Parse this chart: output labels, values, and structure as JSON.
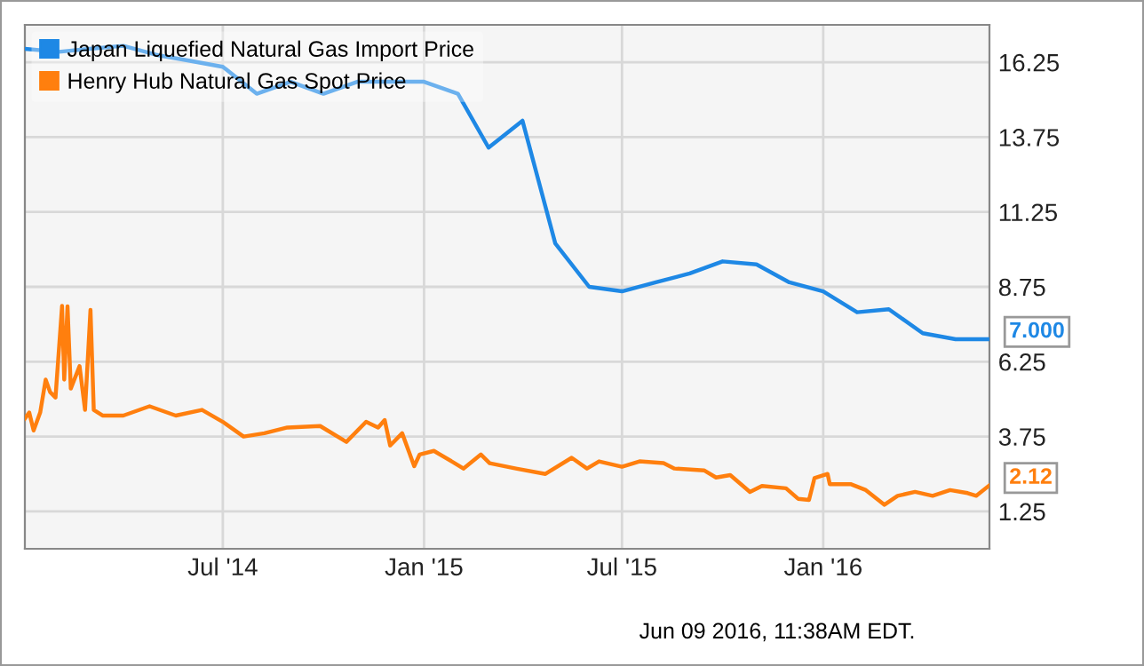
{
  "chart_data": {
    "type": "line",
    "legend": "top left",
    "grid": true,
    "marker": "none",
    "line_style": "solid",
    "xlim": [
      "2014-01-01",
      "2016-06-01"
    ],
    "xticks": [
      {
        "value": "2014-07-01",
        "label": "Jul '14"
      },
      {
        "value": "2015-01-01",
        "label": "Jan '15"
      },
      {
        "value": "2015-07-01",
        "label": "Jul '15"
      },
      {
        "value": "2016-01-01",
        "label": "Jan '16"
      }
    ],
    "ylim": [
      0,
      17.5
    ],
    "yticks": [
      1.25,
      3.75,
      6.25,
      8.75,
      11.25,
      13.75,
      16.25
    ],
    "annotations": [
      "Jun 09 2016, 11:38AM EDT."
    ],
    "series": [
      {
        "name": "Japan Liquefied Natural Gas Import Price",
        "color": "#1e88e5",
        "x": [
          "2014-01-01",
          "2014-02-01",
          "2014-03-01",
          "2014-04-01",
          "2014-05-01",
          "2014-06-01",
          "2014-07-01",
          "2014-08-01",
          "2014-09-01",
          "2014-10-01",
          "2014-11-01",
          "2014-12-01",
          "2015-01-01",
          "2015-02-01",
          "2015-03-01",
          "2015-04-01",
          "2015-05-01",
          "2015-06-01",
          "2015-07-01",
          "2015-08-01",
          "2015-09-01",
          "2015-10-01",
          "2015-11-01",
          "2015-12-01",
          "2016-01-01",
          "2016-02-01",
          "2016-03-01",
          "2016-04-01",
          "2016-05-01",
          "2016-06-01"
        ],
        "values": [
          16.7,
          16.6,
          16.7,
          16.8,
          16.5,
          16.3,
          16.1,
          15.2,
          15.6,
          15.2,
          15.6,
          15.6,
          15.6,
          15.2,
          13.4,
          14.3,
          10.2,
          8.75,
          8.6,
          8.9,
          9.2,
          9.6,
          9.5,
          8.9,
          8.6,
          7.9,
          8.0,
          7.2,
          7.0,
          7.0
        ],
        "value_labels": [
          null,
          null,
          null,
          null,
          null,
          null,
          null,
          null,
          null,
          null,
          null,
          null,
          null,
          null,
          null,
          null,
          null,
          null,
          null,
          null,
          null,
          null,
          null,
          null,
          null,
          null,
          null,
          null,
          null,
          "7.000"
        ]
      },
      {
        "name": "Henry Hub Natural Gas Spot Price",
        "color": "#ff7f0e",
        "x": [
          "2014-01-01",
          "2014-01-05",
          "2014-01-09",
          "2014-01-15",
          "2014-01-20",
          "2014-01-24",
          "2014-01-29",
          "2014-02-04",
          "2014-02-06",
          "2014-02-09",
          "2014-02-12",
          "2014-02-20",
          "2014-02-25",
          "2014-03-02",
          "2014-03-05",
          "2014-03-13",
          "2014-04-01",
          "2014-04-25",
          "2014-05-19",
          "2014-06-12",
          "2014-07-01",
          "2014-07-20",
          "2014-08-08",
          "2014-08-29",
          "2014-09-28",
          "2014-10-22",
          "2014-11-09",
          "2014-11-20",
          "2014-11-26",
          "2014-12-01",
          "2014-12-12",
          "2014-12-23",
          "2014-12-28",
          "2015-01-10",
          "2015-01-29",
          "2015-02-06",
          "2015-02-22",
          "2015-03-02",
          "2015-03-26",
          "2015-04-22",
          "2015-05-16",
          "2015-05-30",
          "2015-06-10",
          "2015-07-01",
          "2015-07-17",
          "2015-08-08",
          "2015-08-18",
          "2015-09-14",
          "2015-09-25",
          "2015-10-08",
          "2015-10-26",
          "2015-11-06",
          "2015-11-28",
          "2015-12-09",
          "2015-12-19",
          "2015-12-24",
          "2016-01-05",
          "2016-01-07",
          "2016-01-26",
          "2016-02-09",
          "2016-02-26",
          "2016-03-09",
          "2016-03-25",
          "2016-04-10",
          "2016-04-26",
          "2016-05-12",
          "2016-05-20",
          "2016-06-01"
        ],
        "values": [
          4.35,
          4.55,
          3.95,
          4.55,
          5.65,
          5.24,
          5.05,
          8.11,
          5.65,
          8.1,
          5.35,
          6.1,
          4.64,
          7.98,
          4.64,
          4.45,
          4.45,
          4.76,
          4.45,
          4.64,
          4.24,
          3.75,
          3.86,
          4.05,
          4.1,
          3.57,
          4.24,
          4.05,
          4.3,
          3.45,
          3.86,
          2.76,
          3.15,
          3.27,
          2.86,
          2.68,
          3.15,
          2.86,
          2.68,
          2.5,
          3.04,
          2.68,
          2.92,
          2.74,
          2.92,
          2.86,
          2.68,
          2.62,
          2.38,
          2.46,
          1.9,
          2.1,
          2.02,
          1.67,
          1.63,
          2.36,
          2.5,
          2.16,
          2.16,
          1.96,
          1.47,
          1.77,
          1.9,
          1.77,
          1.96,
          1.86,
          1.77,
          2.12
        ],
        "value_labels": [
          null,
          null,
          null,
          null,
          null,
          null,
          null,
          null,
          null,
          null,
          null,
          null,
          null,
          null,
          null,
          null,
          null,
          null,
          null,
          null,
          null,
          null,
          null,
          null,
          null,
          null,
          null,
          null,
          null,
          null,
          null,
          null,
          null,
          null,
          null,
          null,
          null,
          null,
          null,
          null,
          null,
          null,
          null,
          null,
          null,
          null,
          null,
          null,
          null,
          null,
          null,
          null,
          null,
          null,
          null,
          null,
          null,
          null,
          null,
          null,
          null,
          null,
          null,
          null,
          null,
          null,
          null,
          "2.12"
        ]
      }
    ]
  }
}
